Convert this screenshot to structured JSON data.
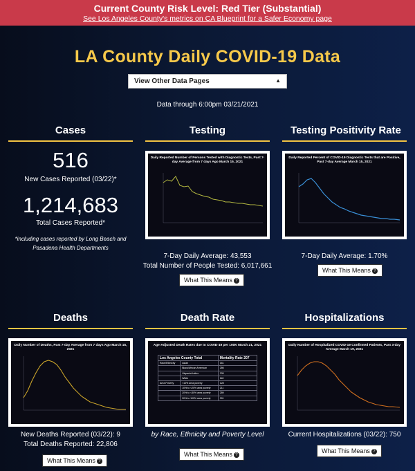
{
  "banner": {
    "title": "Current County Risk Level: Red Tier (Substantial)",
    "link": "See Los Angeles County's metrics on CA Blueprint for a Safer Economy page"
  },
  "page_title": "LA County Daily COVID-19 Data",
  "select_label": "View Other Data Pages",
  "data_through": "Data through 6:00pm 03/21/2021",
  "cases": {
    "title": "Cases",
    "new_value": "516",
    "new_label": "New Cases Reported (03/22)*",
    "total_value": "1,214,683",
    "total_label": "Total Cases Reported*",
    "note": "*including cases reported by Long Beach and Pasadena Health Departments"
  },
  "testing": {
    "title": "Testing",
    "chart_title": "Daily Reported Number of Persons Tested with Diagnostic Tests, Past 7-day Average from 7 days Ago March 15, 2021",
    "avg": "7-Day Daily Average: 43,553",
    "total": "Total Number of People Tested: 6,017,661",
    "button": "What This Means"
  },
  "positivity": {
    "title": "Testing Positivity Rate",
    "chart_title": "Daily Reported Percent of COVID-19 Diagnostic Tests that are Positive, Past 7-day Average March 15, 2021",
    "avg": "7-Day Daily Average: 1.70%",
    "button": "What This Means"
  },
  "deaths": {
    "title": "Deaths",
    "chart_title": "Daily Number of Deaths, Past 7-day Average from 7 days Ago March 15, 2021",
    "new": "New Deaths Reported (03/22): 9",
    "total": "Total Deaths Reported: 22,806",
    "button": "What This Means"
  },
  "death_rate": {
    "title": "Death Rate",
    "chart_title": "Age-Adjusted Death Rates due to COVID-19 per 100K March 21, 2021",
    "table_header": [
      "Los Angeles County Total",
      "Mortality Rate",
      "207"
    ],
    "rows": [
      [
        "Race/Ethnicity",
        "Asian",
        "161"
      ],
      [
        "",
        "Black/African American",
        "286"
      ],
      [
        "",
        "Hispanic/Latino",
        "339"
      ],
      [
        "",
        "White",
        "118"
      ],
      [
        "Area Poverty",
        "<10% area poverty",
        "128"
      ],
      [
        "",
        "10% to <20% area poverty",
        "211"
      ],
      [
        "",
        "20% to <30% area poverty",
        "289"
      ],
      [
        "",
        "30% to 100% area poverty",
        "301"
      ]
    ],
    "caption": "by Race, Ethnicity and Poverty Level",
    "button": "What This Means"
  },
  "hospitalizations": {
    "title": "Hospitalizations",
    "chart_title": "Daily Number of Hospitalized COVID-19 Confirmed Patients, Past 3-day Average March 19, 2021",
    "current": "Current Hospitalizations (03/22): 750",
    "button": "What This Means"
  },
  "colors": {
    "banner": "#c93a4a",
    "title_gold": "#f7c94a",
    "testing_line": "#b4b840",
    "positivity_line": "#3a8fd6",
    "deaths_line": "#c9a32a",
    "hosp_line": "#d2701f"
  },
  "icons": {
    "button_icon": "question-circle-icon",
    "select_icon": "updown-arrow-icon"
  }
}
